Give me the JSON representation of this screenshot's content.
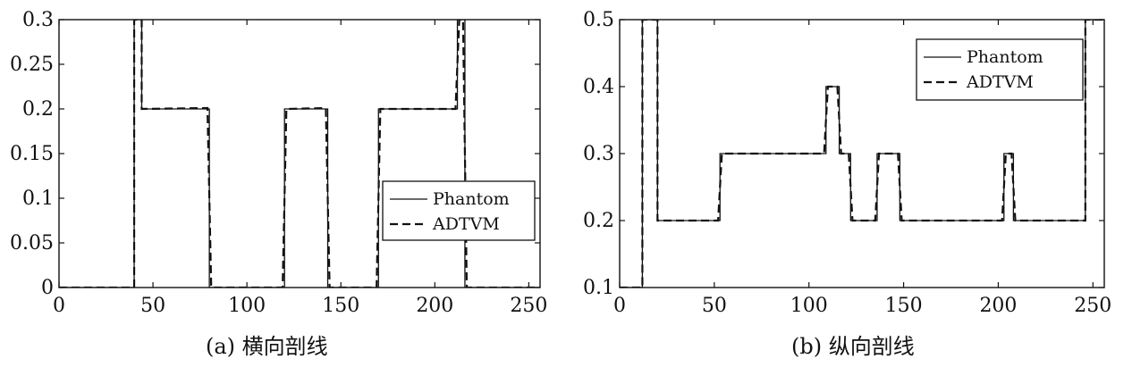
{
  "chart_data": [
    {
      "type": "line",
      "caption": "(a) 横向剖线",
      "xlim": [
        0,
        256
      ],
      "ylim": [
        0,
        0.3
      ],
      "xticks": [
        0,
        50,
        100,
        150,
        200,
        250
      ],
      "yticks": [
        0,
        0.05,
        0.1,
        0.15,
        0.2,
        0.25,
        0.3
      ],
      "ytick_labels": [
        "0",
        "0.05",
        "0.1",
        "0.15",
        "0.2",
        "0.25",
        "0.3"
      ],
      "legend_position": "center-right",
      "grid": false,
      "series": [
        {
          "name": "Phantom",
          "style": "solid",
          "x": [
            0,
            40,
            40,
            44,
            44,
            80,
            80,
            120,
            120,
            143,
            143,
            170,
            170,
            212,
            212,
            216,
            216,
            256
          ],
          "y": [
            0,
            0,
            0.3,
            0.3,
            0.2,
            0.2,
            0,
            0,
            0.2,
            0.2,
            0,
            0,
            0.2,
            0.2,
            0.3,
            0.3,
            0,
            0
          ]
        },
        {
          "name": "ADTVM",
          "style": "dashed",
          "x": [
            0,
            40,
            40,
            44,
            44,
            79,
            81,
            119,
            121,
            142,
            144,
            169,
            171,
            211,
            213,
            215,
            217,
            256
          ],
          "y": [
            0,
            0,
            0.3,
            0.3,
            0.2,
            0.201,
            0,
            0,
            0.2,
            0.201,
            0,
            0,
            0.2,
            0.2,
            0.3,
            0.3,
            0,
            0
          ]
        }
      ]
    },
    {
      "type": "line",
      "caption": "(b) 纵向剖线",
      "xlim": [
        0,
        256
      ],
      "ylim": [
        0.1,
        0.5
      ],
      "xticks": [
        0,
        50,
        100,
        150,
        200,
        250
      ],
      "yticks": [
        0.1,
        0.2,
        0.3,
        0.4,
        0.5
      ],
      "ytick_labels": [
        "0.1",
        "0.2",
        "0.3",
        "0.4",
        "0.5"
      ],
      "legend_position": "top-right",
      "grid": false,
      "series": [
        {
          "name": "Phantom",
          "style": "solid",
          "x": [
            0,
            12,
            12,
            20,
            20,
            53,
            53,
            109,
            109,
            116,
            116,
            122,
            122,
            136,
            136,
            148,
            148,
            203,
            203,
            208,
            208,
            246,
            246,
            256
          ],
          "y": [
            0.1,
            0.1,
            0.5,
            0.5,
            0.2,
            0.2,
            0.3,
            0.3,
            0.4,
            0.4,
            0.3,
            0.3,
            0.2,
            0.2,
            0.3,
            0.3,
            0.2,
            0.2,
            0.3,
            0.3,
            0.2,
            0.2,
            0.5,
            0.5
          ]
        },
        {
          "name": "ADTVM",
          "style": "dashed",
          "x": [
            0,
            12,
            12,
            20,
            20,
            52,
            54,
            108,
            110,
            115,
            117,
            121,
            123,
            135,
            137,
            147,
            149,
            202,
            204,
            207,
            209,
            246,
            246,
            256
          ],
          "y": [
            0.1,
            0.1,
            0.5,
            0.5,
            0.2,
            0.2,
            0.3,
            0.3,
            0.4,
            0.4,
            0.3,
            0.3,
            0.2,
            0.2,
            0.3,
            0.3,
            0.2,
            0.2,
            0.3,
            0.3,
            0.2,
            0.2,
            0.5,
            0.5
          ]
        }
      ]
    }
  ]
}
